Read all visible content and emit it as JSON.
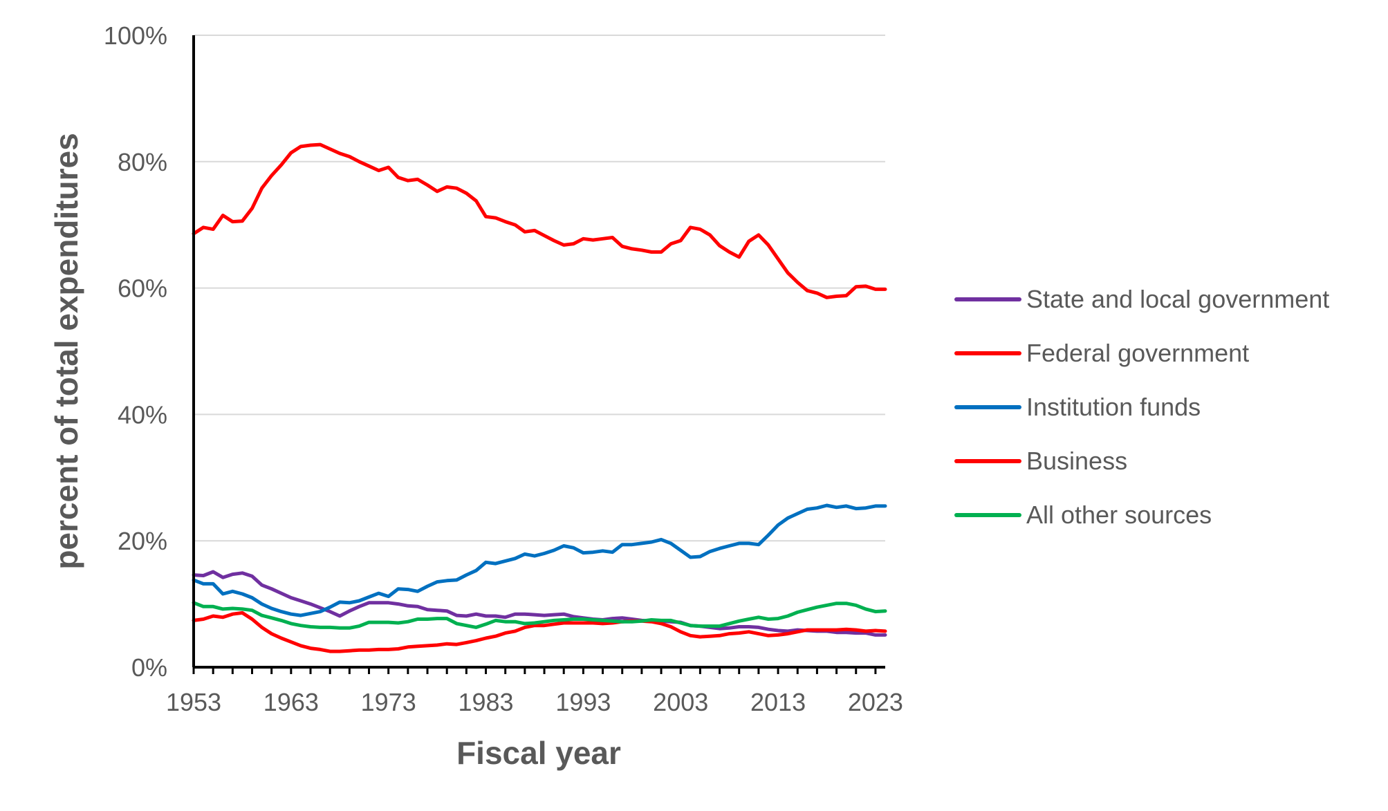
{
  "chart_data": {
    "type": "line",
    "title": "",
    "xlabel": "Fiscal year",
    "ylabel": "percent of total expenditures",
    "xlim": [
      1953,
      2024
    ],
    "ylim": [
      0,
      100
    ],
    "x_ticks": [
      "1953",
      "1963",
      "1973",
      "1983",
      "1993",
      "2003",
      "2013",
      "2023"
    ],
    "y_ticks": [
      "0%",
      "20%",
      "40%",
      "60%",
      "80%",
      "100%"
    ],
    "grid": "horizontal",
    "legend_position": "right",
    "x": [
      1953,
      1954,
      1955,
      1956,
      1957,
      1958,
      1959,
      1960,
      1961,
      1962,
      1963,
      1964,
      1965,
      1966,
      1967,
      1968,
      1969,
      1970,
      1971,
      1972,
      1973,
      1974,
      1975,
      1976,
      1977,
      1978,
      1979,
      1980,
      1981,
      1982,
      1983,
      1984,
      1985,
      1986,
      1987,
      1988,
      1989,
      1990,
      1991,
      1992,
      1993,
      1994,
      1995,
      1996,
      1997,
      1998,
      1999,
      2000,
      2001,
      2002,
      2003,
      2004,
      2005,
      2006,
      2007,
      2008,
      2009,
      2010,
      2011,
      2012,
      2013,
      2014,
      2015,
      2016,
      2017,
      2018,
      2019,
      2020,
      2021,
      2022,
      2023,
      2024
    ],
    "series": [
      {
        "name": "State and local government",
        "color": "#7030A0",
        "values": [
          14.6,
          14.5,
          15.1,
          14.2,
          14.7,
          14.9,
          14.4,
          13.0,
          12.4,
          11.7,
          11.0,
          10.5,
          10.0,
          9.4,
          8.8,
          8.1,
          8.9,
          9.6,
          10.2,
          10.2,
          10.2,
          10.0,
          9.7,
          9.6,
          9.1,
          9.0,
          8.9,
          8.2,
          8.1,
          8.4,
          8.1,
          8.1,
          7.9,
          8.4,
          8.4,
          8.3,
          8.2,
          8.3,
          8.4,
          8.0,
          7.8,
          7.6,
          7.5,
          7.7,
          7.8,
          7.6,
          7.4,
          7.3,
          7.3,
          7.2,
          7.1,
          6.6,
          6.5,
          6.3,
          6.1,
          6.2,
          6.4,
          6.4,
          6.3,
          6.0,
          5.8,
          5.7,
          5.9,
          5.8,
          5.7,
          5.7,
          5.5,
          5.5,
          5.4,
          5.4,
          5.1,
          5.1
        ]
      },
      {
        "name": "Federal government",
        "color": "#FF0000",
        "values": [
          68.6,
          69.6,
          69.3,
          71.5,
          70.5,
          70.6,
          72.6,
          75.8,
          77.8,
          79.5,
          81.4,
          82.4,
          82.6,
          82.7,
          82.0,
          81.3,
          80.8,
          80.0,
          79.3,
          78.6,
          79.1,
          77.5,
          77.0,
          77.2,
          76.3,
          75.3,
          76.0,
          75.8,
          75.0,
          73.8,
          71.3,
          71.1,
          70.5,
          70.0,
          68.9,
          69.1,
          68.3,
          67.5,
          66.8,
          67.0,
          67.8,
          67.6,
          67.8,
          68.0,
          66.6,
          66.2,
          66.0,
          65.7,
          65.7,
          67.0,
          67.5,
          69.6,
          69.3,
          68.4,
          66.7,
          65.7,
          64.9,
          67.4,
          68.4,
          66.8,
          64.6,
          62.4,
          60.9,
          59.6,
          59.2,
          58.5,
          58.7,
          58.8,
          60.2,
          60.3,
          59.8,
          59.8
        ]
      },
      {
        "name": "Institution funds",
        "color": "#0070C0",
        "values": [
          13.8,
          13.2,
          13.2,
          11.6,
          12.0,
          11.6,
          11.0,
          10.0,
          9.3,
          8.8,
          8.4,
          8.2,
          8.5,
          8.8,
          9.5,
          10.3,
          10.2,
          10.5,
          11.1,
          11.7,
          11.2,
          12.4,
          12.3,
          12.0,
          12.8,
          13.5,
          13.7,
          13.8,
          14.6,
          15.3,
          16.6,
          16.4,
          16.8,
          17.2,
          17.9,
          17.6,
          18.0,
          18.5,
          19.2,
          18.9,
          18.1,
          18.2,
          18.4,
          18.2,
          19.4,
          19.4,
          19.6,
          19.8,
          20.2,
          19.6,
          18.5,
          17.4,
          17.5,
          18.3,
          18.8,
          19.2,
          19.6,
          19.6,
          19.4,
          20.9,
          22.5,
          23.6,
          24.3,
          25.0,
          25.2,
          25.6,
          25.3,
          25.5,
          25.1,
          25.2,
          25.5,
          25.5
        ]
      },
      {
        "name": "Business",
        "color": "#FF0000",
        "values": [
          7.4,
          7.6,
          8.1,
          7.9,
          8.4,
          8.6,
          7.6,
          6.3,
          5.3,
          4.6,
          4.0,
          3.4,
          3.0,
          2.8,
          2.5,
          2.5,
          2.6,
          2.7,
          2.7,
          2.8,
          2.8,
          2.9,
          3.2,
          3.3,
          3.4,
          3.5,
          3.7,
          3.6,
          3.9,
          4.2,
          4.6,
          4.9,
          5.4,
          5.7,
          6.3,
          6.6,
          6.6,
          6.8,
          7.0,
          7.0,
          7.0,
          7.0,
          6.9,
          7.0,
          7.2,
          7.3,
          7.3,
          7.2,
          6.9,
          6.4,
          5.6,
          5.0,
          4.8,
          4.9,
          5.0,
          5.3,
          5.4,
          5.6,
          5.3,
          5.0,
          5.1,
          5.3,
          5.6,
          5.9,
          5.9,
          5.9,
          5.9,
          6.0,
          5.9,
          5.7,
          5.8,
          5.7
        ]
      },
      {
        "name": "All other sources",
        "color": "#00B050",
        "values": [
          10.2,
          9.6,
          9.6,
          9.2,
          9.3,
          9.2,
          9.0,
          8.2,
          7.8,
          7.4,
          6.9,
          6.6,
          6.4,
          6.3,
          6.3,
          6.2,
          6.2,
          6.5,
          7.1,
          7.1,
          7.1,
          7.0,
          7.2,
          7.6,
          7.6,
          7.7,
          7.7,
          6.9,
          6.6,
          6.3,
          6.8,
          7.4,
          7.2,
          7.2,
          6.9,
          7.0,
          7.2,
          7.4,
          7.5,
          7.6,
          7.6,
          7.5,
          7.4,
          7.3,
          7.2,
          7.2,
          7.3,
          7.5,
          7.4,
          7.4,
          7.0,
          6.6,
          6.5,
          6.5,
          6.5,
          6.9,
          7.3,
          7.6,
          7.9,
          7.6,
          7.7,
          8.1,
          8.7,
          9.1,
          9.5,
          9.8,
          10.1,
          10.1,
          9.8,
          9.2,
          8.8,
          8.9
        ]
      }
    ]
  }
}
